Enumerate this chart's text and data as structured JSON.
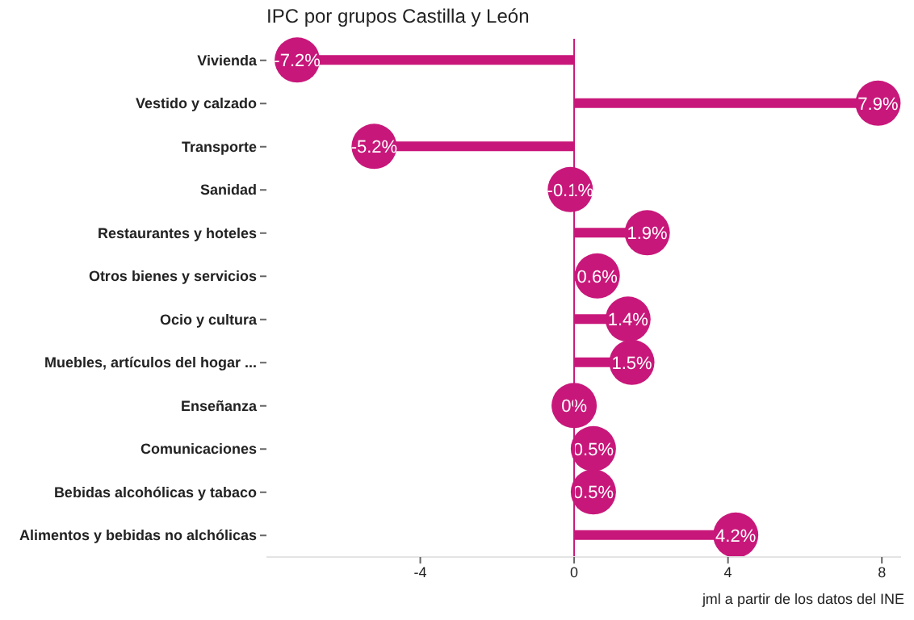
{
  "chart_data": {
    "type": "lollipop",
    "orientation": "horizontal",
    "title": "IPC por grupos Castilla y León",
    "annotations": [
      "jml a partir de los datos del INE"
    ],
    "categories": [
      "Vivienda",
      "Vestido y calzado",
      "Transporte",
      "Sanidad",
      "Restaurantes y hoteles",
      "Otros bienes y servicios",
      "Ocio y cultura",
      "Muebles, artículos del hogar ...",
      "Enseñanza",
      "Comunicaciones",
      "Bebidas alcohólicas y tabaco",
      "Alimentos y bebidas no alchólicas"
    ],
    "values": [
      -7.2,
      7.9,
      -5.2,
      -0.1,
      1.9,
      0.6,
      1.4,
      1.5,
      0,
      0.5,
      0.5,
      4.2
    ],
    "value_labels": [
      "-7.2%",
      "7.9%",
      "-5.2%",
      "-0.1%",
      "1.9%",
      "0.6%",
      "1.4%",
      "1.5%",
      "0%",
      "0.5%",
      "0.5%",
      "4.2%"
    ],
    "color": "#c8177a",
    "xlim": [
      -8,
      8.5
    ],
    "xticks": [
      -4,
      0,
      4,
      8
    ],
    "ref_lines": [
      {
        "axis": "x",
        "value": 0,
        "color": "#c8177a"
      }
    ],
    "grid": false,
    "legend": false
  }
}
